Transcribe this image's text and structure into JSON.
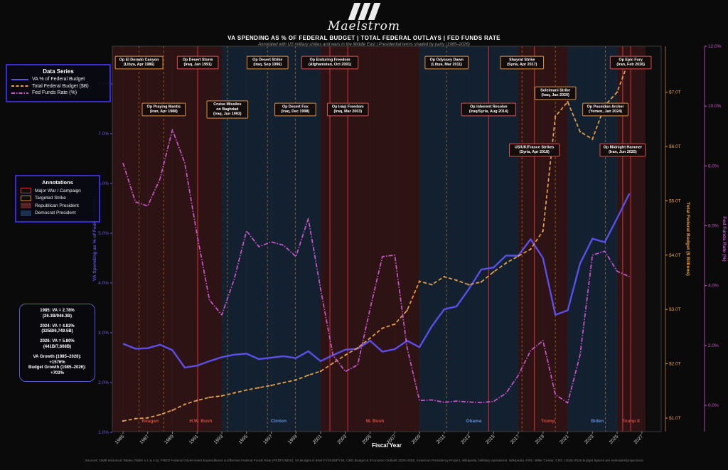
{
  "header": {
    "brand": "Maelstrom",
    "title": "VA SPENDING AS % OF FEDERAL BUDGET  |  TOTAL FEDERAL OUTLAYS  |  FED FUNDS RATE",
    "subtitle": "Annotated with US military strikes and wars in the Middle East  |  Presidential terms shaded by party  (1985–2026)"
  },
  "legend_series": {
    "title": "Data Series",
    "items": [
      {
        "label": "VA % of Federal Budget",
        "color": "#5b4ee9",
        "style": "solid"
      },
      {
        "label": "Total Federal Budget ($B)",
        "color": "#e8a04a",
        "style": "dashed"
      },
      {
        "label": "Fed Funds Rate (%)",
        "color": "#cc55cc",
        "style": "dashdot"
      }
    ]
  },
  "legend_annotations": {
    "title": "Annotations",
    "items": [
      {
        "label": "Major War / Campaign",
        "swatch": "outline",
        "color": "#d63031"
      },
      {
        "label": "Targeted Strike",
        "swatch": "outline",
        "color": "#d98826"
      },
      {
        "label": "Republican President",
        "swatch": "fill",
        "color": "#5a2220"
      },
      {
        "label": "Democrat President",
        "swatch": "fill",
        "color": "#1d3050"
      }
    ]
  },
  "stats_box": {
    "groups": [
      [
        "1985: VA = 2.78%",
        "(26.3B/946.3B)"
      ],
      [
        "2024: VA = 4.82%",
        "(325B/6,749.5B)"
      ],
      [
        "2026: VA = 5.80%",
        "(441B/7,608B)"
      ],
      [
        "VA Growth (1985–2026):",
        "+1576%",
        "Budget Growth (1985–2026):",
        "+703%"
      ]
    ]
  },
  "footer": {
    "source": "Sources: OMB Historical Tables (Table 4.1 & 4.5), FRED Federal Government Expenditures & Effective Federal Funds Rate (FEDFUNDS), VA Budget in Brief FY2025/FY26, CBO Budget & Economic Outlook 2025-2035, American Presidency Project, Wikipedia  |  Military operations: Wikipedia, FRS, Miller Center, CRS  |  2025-2026 budget figures are estimates/projections"
  },
  "chart_data": {
    "type": "line",
    "title": "VA SPENDING AS % OF FEDERAL BUDGET | TOTAL FEDERAL OUTLAYS | FED FUNDS RATE",
    "xlabel": "Fiscal Year",
    "ylabel_left": "VA Spending as % of Federal Budget",
    "ylabel_right_budget": "Total Federal Budget ($ Billions)",
    "ylabel_right_fed": "Fed Funds Rate (%)",
    "grid": true,
    "legend_position": "upper-left",
    "x": [
      1985,
      1986,
      1987,
      1988,
      1989,
      1990,
      1991,
      1992,
      1993,
      1994,
      1995,
      1996,
      1997,
      1998,
      1999,
      2000,
      2001,
      2002,
      2003,
      2004,
      2005,
      2006,
      2007,
      2008,
      2009,
      2010,
      2011,
      2012,
      2013,
      2014,
      2015,
      2016,
      2017,
      2018,
      2019,
      2020,
      2021,
      2022,
      2023,
      2024,
      2025,
      2026
    ],
    "series": [
      {
        "name": "VA % of Federal Budget",
        "axis": "va",
        "color": "#5b4ee9",
        "style": "solid",
        "values": [
          2.78,
          2.68,
          2.69,
          2.76,
          2.65,
          2.3,
          2.34,
          2.43,
          2.51,
          2.56,
          2.58,
          2.47,
          2.5,
          2.53,
          2.49,
          2.63,
          2.43,
          2.55,
          2.66,
          2.68,
          2.84,
          2.62,
          2.67,
          2.84,
          2.71,
          3.13,
          3.47,
          3.53,
          3.88,
          4.27,
          4.31,
          4.55,
          4.55,
          4.88,
          4.5,
          3.36,
          3.45,
          4.39,
          4.89,
          4.82,
          5.3,
          5.8
        ]
      },
      {
        "name": "Total Federal Budget ($T)",
        "axis": "budget",
        "color": "#e8a04a",
        "style": "dashed",
        "values": [
          0.946,
          0.99,
          1.004,
          1.064,
          1.144,
          1.253,
          1.324,
          1.382,
          1.409,
          1.462,
          1.516,
          1.56,
          1.601,
          1.653,
          1.702,
          1.789,
          1.863,
          2.011,
          2.16,
          2.293,
          2.472,
          2.655,
          2.729,
          2.983,
          3.518,
          3.457,
          3.603,
          3.537,
          3.455,
          3.506,
          3.692,
          3.853,
          3.982,
          4.109,
          4.447,
          6.554,
          6.822,
          6.273,
          6.135,
          6.75,
          7.0,
          7.608
        ]
      },
      {
        "name": "Fed Funds Rate (%)",
        "axis": "fed",
        "color": "#cc55cc",
        "style": "dashdot",
        "values": [
          8.1,
          6.8,
          6.66,
          7.57,
          9.21,
          8.1,
          5.69,
          3.52,
          3.02,
          4.21,
          5.83,
          5.3,
          5.46,
          5.35,
          4.97,
          6.24,
          3.88,
          1.67,
          1.13,
          1.35,
          3.22,
          4.97,
          5.02,
          1.92,
          0.16,
          0.18,
          0.1,
          0.14,
          0.11,
          0.09,
          0.13,
          0.4,
          1.0,
          1.83,
          2.16,
          0.36,
          0.08,
          1.68,
          5.02,
          5.15,
          4.48,
          4.3
        ]
      }
    ],
    "axes": {
      "x_ticks": [
        1985,
        1987,
        1989,
        1991,
        1993,
        1995,
        1997,
        1999,
        2001,
        2003,
        2005,
        2007,
        2009,
        2011,
        2013,
        2015,
        2017,
        2019,
        2021,
        2023,
        2025,
        2027
      ],
      "va": {
        "ticks": [
          1,
          2,
          3,
          4,
          5,
          6,
          7,
          8
        ],
        "range": [
          1.0,
          8.76
        ],
        "tick_suffix": "%"
      },
      "budget": {
        "ticks": [
          1,
          2,
          3,
          4,
          5,
          6,
          7
        ],
        "range": [
          0.75,
          7.9
        ],
        "tick_prefix": "$",
        "tick_suffix": "T"
      },
      "fed": {
        "ticks": [
          0,
          2,
          4,
          6,
          8,
          10,
          12
        ],
        "range": [
          -0.9,
          12.0
        ],
        "tick_suffix": "%"
      }
    },
    "presidents": [
      {
        "name": "Reagan",
        "party": "R",
        "start": 1984.0,
        "end": 1989.0,
        "label_year": 1987.2
      },
      {
        "name": "H.W. Bush",
        "party": "R",
        "start": 1989.0,
        "end": 1993.0,
        "label_year": 1991.3
      },
      {
        "name": "Clinton",
        "party": "D",
        "start": 1993.0,
        "end": 2001.0,
        "label_year": 1997.6
      },
      {
        "name": "W. Bush",
        "party": "R",
        "start": 2001.0,
        "end": 2009.0,
        "label_year": 2005.4
      },
      {
        "name": "Obama",
        "party": "D",
        "start": 2009.0,
        "end": 2017.0,
        "label_year": 2013.4
      },
      {
        "name": "Trump",
        "party": "R",
        "start": 2017.0,
        "end": 2021.0,
        "label_year": 2019.4
      },
      {
        "name": "Biden",
        "party": "D",
        "start": 2021.0,
        "end": 2025.0,
        "label_year": 2023.4
      },
      {
        "name": "Trump II",
        "party": "R",
        "start": 2025.0,
        "end": 2027.3,
        "label_year": 2026.1
      }
    ],
    "events": [
      {
        "lines": [
          "Op El Dorado Canyon",
          "(Libya, Apr 1986)"
        ],
        "year": 1986.3,
        "kind": "strike",
        "row": 0
      },
      {
        "lines": [
          "Op Praying Mantis",
          "(Iran, Apr 1988)"
        ],
        "year": 1988.3,
        "kind": "strike",
        "row": 2
      },
      {
        "lines": [
          "Op Desert Storm",
          "(Iraq, Jan 1991)"
        ],
        "year": 1991.05,
        "kind": "war",
        "row": 0
      },
      {
        "lines": [
          "Cruise Missiles",
          "on Baghdad",
          "(Iraq, Jun 1993)"
        ],
        "year": 1993.45,
        "kind": "strike",
        "row": 2
      },
      {
        "lines": [
          "Op Desert Strike",
          "(Iraq, Sep 1996)"
        ],
        "year": 1996.7,
        "kind": "strike",
        "row": 0
      },
      {
        "lines": [
          "Op Desert Fox",
          "(Iraq, Dec 1998)"
        ],
        "year": 1998.95,
        "kind": "strike",
        "row": 2
      },
      {
        "lines": [
          "Op Enduring Freedom",
          "(Afghanistan, Oct 2001)"
        ],
        "year": 2001.75,
        "kind": "war",
        "row": 0
      },
      {
        "lines": [
          "Op Iraqi Freedom",
          "(Iraq, Mar 2003)"
        ],
        "year": 2003.2,
        "kind": "war",
        "row": 2
      },
      {
        "lines": [
          "Op Odyssey Dawn",
          "(Libya, Mar 2011)"
        ],
        "year": 2011.2,
        "kind": "strike",
        "row": 0
      },
      {
        "lines": [
          "Op Inherent Resolve",
          "(Iraq/Syria, Aug 2014)"
        ],
        "year": 2014.6,
        "kind": "war",
        "row": 2
      },
      {
        "lines": [
          "Shayrat Strike",
          "(Syria, Apr 2017)"
        ],
        "year": 2017.3,
        "kind": "strike",
        "row": 0
      },
      {
        "lines": [
          "US/UK/France Strikes",
          "(Syria, Apr 2018)"
        ],
        "year": 2018.3,
        "kind": "war",
        "row": 3
      },
      {
        "lines": [
          "Soleimani Strike",
          "(Iraq, Jan 2020)"
        ],
        "year": 2020.0,
        "kind": "strike",
        "row": 1
      },
      {
        "lines": [
          "Op Poseidon Archer",
          "(Yemen, Jan 2024)"
        ],
        "year": 2024.05,
        "kind": "strike",
        "row": 2
      },
      {
        "lines": [
          "Op Midnight Hammer",
          "(Iran, Jun 2025)"
        ],
        "year": 2025.45,
        "kind": "war",
        "row": 3
      },
      {
        "lines": [
          "Op Epic Fury",
          "(Iran, Feb 2026)"
        ],
        "year": 2026.1,
        "kind": "war",
        "row": 0
      }
    ],
    "colors": {
      "war_line": "#c23232",
      "strike_line": "#d98826",
      "republican_band": "#2e1314",
      "democrat_band": "#13202f",
      "label_red": "#d24a3e",
      "label_blue": "#5d8bd4",
      "plot_bg": "#0d0d0d"
    }
  }
}
